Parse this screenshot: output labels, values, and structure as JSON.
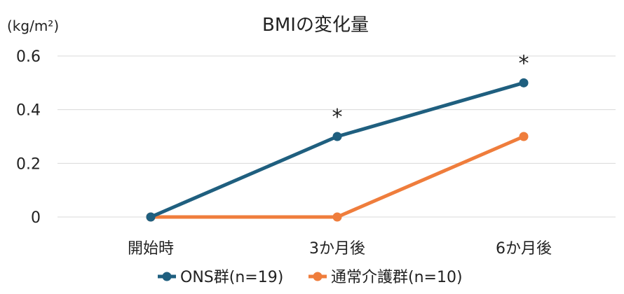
{
  "chart_data": {
    "type": "line",
    "title": "BMIの変化量",
    "ylabel": "(kg/m²)",
    "xlabel": "",
    "categories": [
      "開始時",
      "3か月後",
      "6か月後"
    ],
    "ylim": [
      0,
      0.6
    ],
    "yticks": [
      0,
      0.2,
      0.4,
      0.6
    ],
    "ytick_labels": [
      "0",
      "0.2",
      "0.4",
      "0.6"
    ],
    "grid": true,
    "legend_position": "bottom",
    "series": [
      {
        "name": "ONS群(n=19)",
        "values": [
          0,
          0.3,
          0.5
        ],
        "color": "#1f5f7f"
      },
      {
        "name": "通常介護群(n=10)",
        "values": [
          0,
          0,
          0.3
        ],
        "color": "#ef7d3c"
      }
    ],
    "annotations": [
      {
        "text": "*",
        "category": "3か月後",
        "series": "ONS群(n=19)"
      },
      {
        "text": "*",
        "category": "6か月後",
        "series": "ONS群(n=19)"
      }
    ]
  }
}
